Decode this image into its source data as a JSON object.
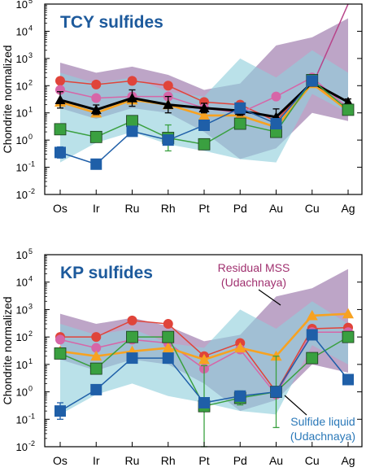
{
  "colors": {
    "purple_band": "#a787b4",
    "cyan_band": "#8fcfdc",
    "red": "#e0443a",
    "pink": "#d666a8",
    "orange": "#f7a221",
    "black": "#000000",
    "green": "#3aa040",
    "blue": "#1f5fa8",
    "magenta": "#b8448a",
    "title_blue": "#1d5a9c",
    "ann_purple": "#a0306f",
    "ann_blue": "#2a78b8"
  },
  "chart_data": [
    {
      "type": "line",
      "title": "TCY sulfides",
      "ylabel": "Chondrite normalized",
      "yscale": "log",
      "ylim": [
        0.01,
        100000
      ],
      "yticks": [
        {
          "label": "10",
          "exp": "-2"
        },
        {
          "label": "10",
          "exp": "-1"
        },
        {
          "label": "10",
          "exp": "0"
        },
        {
          "label": "10",
          "exp": "1"
        },
        {
          "label": "10",
          "exp": "2"
        },
        {
          "label": "10",
          "exp": "3"
        },
        {
          "label": "10",
          "exp": "4"
        },
        {
          "label": "10",
          "exp": "5"
        }
      ],
      "categories": [
        "Os",
        "Ir",
        "Ru",
        "Rh",
        "Pt",
        "Pd",
        "Au",
        "Cu",
        "Ag"
      ],
      "bands": [
        {
          "color": "purple",
          "upper": [
            700,
            300,
            500,
            250,
            70,
            120,
            3000,
            6000,
            30000
          ],
          "lower": [
            15,
            6,
            15,
            10,
            2,
            0.2,
            0.5,
            10,
            5
          ]
        },
        {
          "color": "cyan",
          "upper": [
            300,
            120,
            200,
            60,
            40,
            1000,
            200,
            2000,
            300
          ],
          "lower": [
            0.15,
            0.8,
            2,
            0.7,
            0.4,
            0.2,
            0.15,
            50,
            10
          ]
        }
      ],
      "series": [
        {
          "color": "magenta",
          "marker": "none",
          "values": [
            null,
            null,
            null,
            null,
            null,
            null,
            null,
            100,
            100000
          ]
        },
        {
          "color": "red",
          "marker": "circle",
          "values": [
            150,
            110,
            150,
            100,
            25,
            20,
            5,
            150,
            12
          ]
        },
        {
          "color": "pink",
          "marker": "circle",
          "values": [
            70,
            35,
            40,
            40,
            15,
            10,
            40,
            200,
            15
          ]
        },
        {
          "color": "orange",
          "marker": "triangle",
          "values": [
            25,
            10,
            30,
            20,
            8,
            8,
            3,
            120,
            12
          ]
        },
        {
          "color": "black",
          "marker": "triangle",
          "values": [
            30,
            13,
            35,
            20,
            15,
            12,
            7,
            130,
            25
          ],
          "errors": [
            2,
            1.5,
            2,
            2,
            1.5,
            1.5,
            2,
            1.3,
            1.3
          ]
        },
        {
          "color": "green",
          "marker": "square",
          "values": [
            2.5,
            1.3,
            5,
            1.2,
            0.7,
            4,
            2,
            160,
            13
          ],
          "errors": [
            1,
            1,
            1,
            3,
            1,
            1,
            1,
            1,
            1
          ]
        },
        {
          "color": "blue",
          "marker": "square",
          "values": [
            0.35,
            0.13,
            2.1,
            1.0,
            3.5,
            15,
            4,
            150,
            null
          ],
          "errors": [
            1.6,
            1,
            1,
            1,
            1,
            1,
            1,
            1,
            1
          ]
        }
      ],
      "annotations": []
    },
    {
      "type": "line",
      "title": "KP sulfides",
      "ylabel": "Chondrite normalized",
      "yscale": "log",
      "ylim": [
        0.01,
        100000
      ],
      "yticks": [
        {
          "label": "10",
          "exp": "-2"
        },
        {
          "label": "10",
          "exp": "-1"
        },
        {
          "label": "10",
          "exp": "0"
        },
        {
          "label": "10",
          "exp": "1"
        },
        {
          "label": "10",
          "exp": "2"
        },
        {
          "label": "10",
          "exp": "3"
        },
        {
          "label": "10",
          "exp": "4"
        },
        {
          "label": "10",
          "exp": "5"
        }
      ],
      "categories": [
        "Os",
        "Ir",
        "Ru",
        "Rh",
        "Pt",
        "Pd",
        "Au",
        "Cu",
        "Ag"
      ],
      "bands": [
        {
          "color": "purple",
          "upper": [
            700,
            300,
            500,
            250,
            70,
            120,
            3000,
            6000,
            30000
          ],
          "lower": [
            15,
            6,
            15,
            10,
            2,
            0.2,
            0.5,
            10,
            5
          ]
        },
        {
          "color": "cyan",
          "upper": [
            300,
            120,
            200,
            60,
            40,
            1000,
            200,
            2000,
            300
          ],
          "lower": [
            0.15,
            0.8,
            2,
            0.7,
            0.4,
            0.2,
            0.15,
            50,
            10
          ]
        }
      ],
      "series": [
        {
          "color": "red",
          "marker": "circle",
          "values": [
            100,
            100,
            400,
            300,
            20,
            60,
            1,
            200,
            220
          ]
        },
        {
          "color": "pink",
          "marker": "circle",
          "values": [
            80,
            40,
            80,
            60,
            7,
            35,
            0.8,
            150,
            150
          ]
        },
        {
          "color": "orange",
          "marker": "triangle",
          "values": [
            30,
            20,
            30,
            40,
            15,
            40,
            20,
            600,
            700
          ]
        },
        {
          "color": "green",
          "marker": "square",
          "values": [
            25,
            7,
            100,
            100,
            0.3,
            0.6,
            1,
            17,
            100
          ],
          "errors": [
            1.3,
            1,
            1,
            1,
            30,
            1.8,
            20,
            1,
            1
          ]
        },
        {
          "color": "blue",
          "marker": "square",
          "values": [
            0.2,
            1.2,
            17,
            17,
            0.4,
            0.7,
            1,
            120,
            2.8
          ],
          "errors": [
            2,
            1,
            1,
            1,
            1,
            1,
            1,
            1,
            1
          ]
        }
      ],
      "annotations": [
        {
          "lines": [
            "Residual MSS",
            "(Udachnaya)"
          ],
          "color": "ann_purple"
        },
        {
          "lines": [
            "Sulfide liquid",
            "(Udachnaya)"
          ],
          "color": "ann_blue"
        }
      ]
    }
  ]
}
